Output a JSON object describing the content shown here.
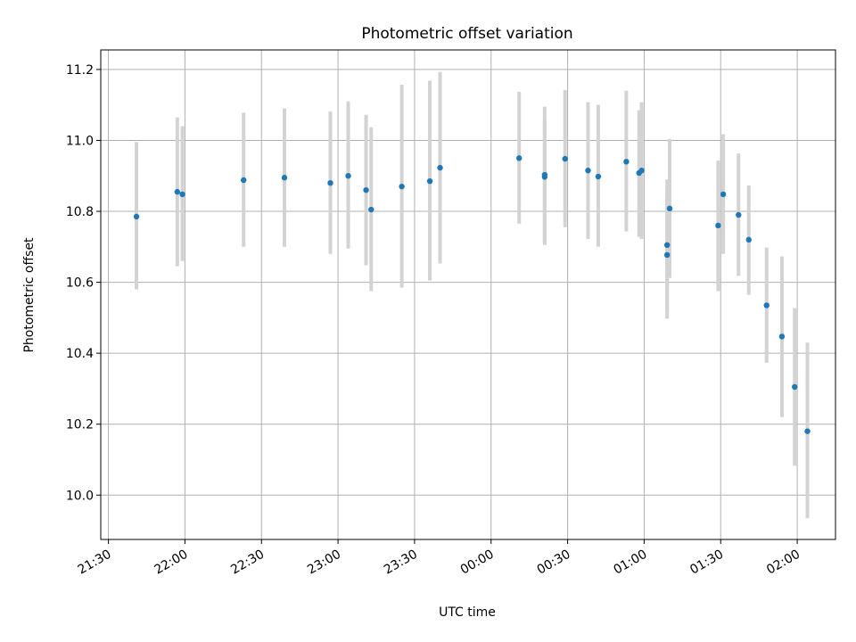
{
  "chart_data": {
    "type": "scatter",
    "title": "Photometric offset variation",
    "xlabel": "UTC time",
    "ylabel": "Photometric offset",
    "x_ticks": [
      "21:30",
      "22:00",
      "22:30",
      "23:00",
      "23:30",
      "00:00",
      "00:30",
      "01:00",
      "01:30",
      "02:00"
    ],
    "y_ticks": [
      "10.0",
      "10.2",
      "10.4",
      "10.6",
      "10.8",
      "11.0",
      "11.2"
    ],
    "xlim": [
      "21:27",
      "02:15"
    ],
    "ylim": [
      9.875,
      11.255
    ],
    "grid": true,
    "colors": {
      "points": "#1f77b4",
      "errorbars": "#d3d3d3",
      "grid": "#b0b0b0"
    },
    "points": [
      {
        "time": "21:41",
        "value": 10.785,
        "low": 10.58,
        "high": 10.995
      },
      {
        "time": "21:57",
        "value": 10.855,
        "low": 10.645,
        "high": 11.065
      },
      {
        "time": "21:59",
        "value": 10.848,
        "low": 10.66,
        "high": 11.04
      },
      {
        "time": "22:23",
        "value": 10.888,
        "low": 10.7,
        "high": 11.078
      },
      {
        "time": "22:39",
        "value": 10.895,
        "low": 10.7,
        "high": 11.09
      },
      {
        "time": "22:57",
        "value": 10.88,
        "low": 10.68,
        "high": 11.082
      },
      {
        "time": "23:04",
        "value": 10.9,
        "low": 10.695,
        "high": 11.11
      },
      {
        "time": "23:11",
        "value": 10.86,
        "low": 10.648,
        "high": 11.072
      },
      {
        "time": "23:13",
        "value": 10.805,
        "low": 10.575,
        "high": 11.037
      },
      {
        "time": "23:25",
        "value": 10.87,
        "low": 10.585,
        "high": 11.157
      },
      {
        "time": "23:36",
        "value": 10.885,
        "low": 10.605,
        "high": 11.168
      },
      {
        "time": "23:40",
        "value": 10.923,
        "low": 10.653,
        "high": 11.193
      },
      {
        "time": "00:11",
        "value": 10.95,
        "low": 10.765,
        "high": 11.137
      },
      {
        "time": "00:21",
        "value": 10.897,
        "low": 10.705,
        "high": 11.095
      },
      {
        "time": "00:21",
        "value": 10.903,
        "low": 10.712,
        "high": 11.06
      },
      {
        "time": "00:29",
        "value": 10.948,
        "low": 10.755,
        "high": 11.142
      },
      {
        "time": "00:38",
        "value": 10.915,
        "low": 10.722,
        "high": 11.108
      },
      {
        "time": "00:42",
        "value": 10.898,
        "low": 10.7,
        "high": 11.1
      },
      {
        "time": "00:53",
        "value": 10.94,
        "low": 10.743,
        "high": 11.14
      },
      {
        "time": "00:58",
        "value": 10.908,
        "low": 10.728,
        "high": 11.085
      },
      {
        "time": "00:59",
        "value": 10.915,
        "low": 10.722,
        "high": 11.108
      },
      {
        "time": "01:09",
        "value": 10.677,
        "low": 10.497,
        "high": 10.857
      },
      {
        "time": "01:09",
        "value": 10.705,
        "low": 10.52,
        "high": 10.89
      },
      {
        "time": "01:10",
        "value": 10.808,
        "low": 10.612,
        "high": 11.004
      },
      {
        "time": "01:29",
        "value": 10.76,
        "low": 10.575,
        "high": 10.943
      },
      {
        "time": "01:31",
        "value": 10.848,
        "low": 10.68,
        "high": 11.017
      },
      {
        "time": "01:37",
        "value": 10.79,
        "low": 10.618,
        "high": 10.963
      },
      {
        "time": "01:41",
        "value": 10.72,
        "low": 10.565,
        "high": 10.873
      },
      {
        "time": "01:48",
        "value": 10.535,
        "low": 10.373,
        "high": 10.698
      },
      {
        "time": "01:54",
        "value": 10.447,
        "low": 10.22,
        "high": 10.673
      },
      {
        "time": "01:59",
        "value": 10.305,
        "low": 10.083,
        "high": 10.527
      },
      {
        "time": "02:04",
        "value": 10.18,
        "low": 9.935,
        "high": 10.43
      }
    ]
  }
}
